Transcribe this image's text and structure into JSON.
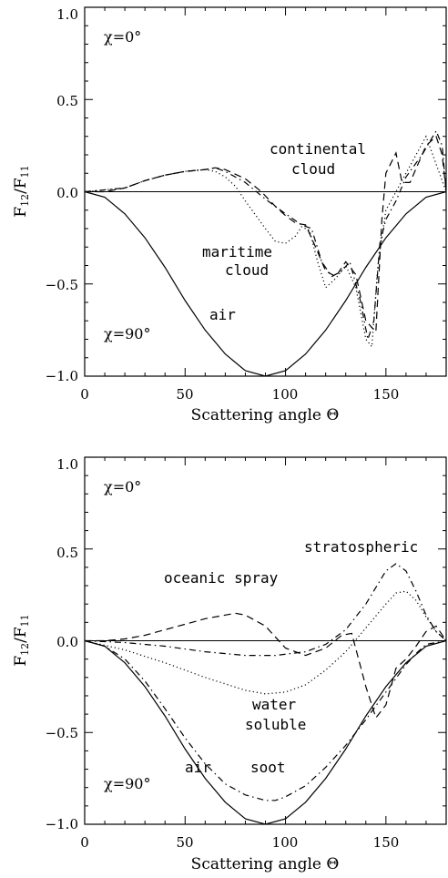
{
  "chart_data": [
    {
      "type": "line",
      "xlabel": "Scattering angle Θ",
      "ylabel": "F12/F11",
      "ylabel_main": "F",
      "ylabel_sub1": "12",
      "ylabel_sep": "/F",
      "ylabel_sub2": "11",
      "xlim": [
        0,
        180
      ],
      "ylim": [
        -1.0,
        1.0
      ],
      "xticks": [
        0,
        50,
        100,
        150
      ],
      "xtick_labels": [
        "0",
        "50",
        "100",
        "150"
      ],
      "yticks": [
        1.0,
        0.5,
        0.0,
        -0.5,
        -1.0
      ],
      "ytick_labels": [
        "1.0",
        "0.5",
        "0.0",
        "−0.5",
        "−1.0"
      ],
      "annotations": {
        "chi0": "χ=0°",
        "chi90": "χ=90°",
        "continental_1": "continental",
        "continental_2": "cloud",
        "maritime_1": "maritime",
        "maritime_2": "cloud",
        "air": "air"
      },
      "series": [
        {
          "name": "air",
          "style": "solid",
          "x": [
            0,
            10,
            20,
            30,
            40,
            50,
            60,
            70,
            80,
            90,
            100,
            110,
            120,
            130,
            140,
            150,
            160,
            170,
            180
          ],
          "y": [
            0,
            -0.03,
            -0.12,
            -0.25,
            -0.41,
            -0.59,
            -0.75,
            -0.88,
            -0.97,
            -1.0,
            -0.97,
            -0.88,
            -0.75,
            -0.59,
            -0.41,
            -0.25,
            -0.12,
            -0.03,
            0
          ]
        },
        {
          "name": "continental cloud",
          "style": "dash",
          "x": [
            0,
            10,
            20,
            30,
            40,
            50,
            60,
            65,
            70,
            80,
            88,
            95,
            100,
            105,
            110,
            115,
            120,
            125,
            130,
            135,
            140,
            145,
            148,
            150,
            155,
            158,
            162,
            170,
            175,
            178,
            180
          ],
          "y": [
            0,
            0.0,
            0.02,
            0.06,
            0.09,
            0.11,
            0.12,
            0.13,
            0.12,
            0.07,
            0.0,
            -0.08,
            -0.13,
            -0.17,
            -0.18,
            -0.3,
            -0.43,
            -0.46,
            -0.38,
            -0.45,
            -0.7,
            -0.76,
            -0.15,
            0.1,
            0.21,
            0.05,
            0.05,
            0.25,
            0.3,
            0.2,
            0
          ]
        },
        {
          "name": "continental cloud (dash-dot)",
          "style": "dashdot",
          "x": [
            0,
            20,
            30,
            40,
            50,
            60,
            65,
            70,
            80,
            90,
            100,
            108,
            113,
            118,
            123,
            128,
            132,
            137,
            141,
            144,
            147,
            150,
            155,
            160,
            168,
            175,
            178,
            180
          ],
          "y": [
            0,
            0.02,
            0.06,
            0.09,
            0.11,
            0.12,
            0.13,
            0.11,
            0.05,
            -0.04,
            -0.12,
            -0.18,
            -0.2,
            -0.38,
            -0.46,
            -0.43,
            -0.38,
            -0.58,
            -0.8,
            -0.7,
            -0.28,
            -0.15,
            -0.05,
            0.08,
            0.2,
            0.33,
            0.25,
            0
          ]
        },
        {
          "name": "maritime cloud",
          "style": "dot",
          "x": [
            0,
            20,
            30,
            40,
            50,
            60,
            65,
            70,
            75,
            80,
            90,
            95,
            100,
            105,
            108,
            112,
            116,
            120,
            125,
            130,
            135,
            140,
            143,
            146,
            150,
            155,
            160,
            170,
            180
          ],
          "y": [
            0,
            0.02,
            0.06,
            0.09,
            0.11,
            0.12,
            0.11,
            0.08,
            0.03,
            -0.05,
            -0.2,
            -0.27,
            -0.28,
            -0.24,
            -0.19,
            -0.21,
            -0.38,
            -0.52,
            -0.47,
            -0.4,
            -0.52,
            -0.8,
            -0.84,
            -0.4,
            -0.1,
            0.0,
            0.1,
            0.3,
            0
          ]
        }
      ]
    },
    {
      "type": "line",
      "xlabel": "Scattering angle Θ",
      "ylabel": "F12/F11",
      "ylabel_main": "F",
      "ylabel_sub1": "12",
      "ylabel_sep": "/F",
      "ylabel_sub2": "11",
      "xlim": [
        0,
        180
      ],
      "ylim": [
        -1.0,
        1.0
      ],
      "xticks": [
        0,
        50,
        100,
        150
      ],
      "xtick_labels": [
        "0",
        "50",
        "100",
        "150"
      ],
      "yticks": [
        1.0,
        0.5,
        0.0,
        -0.5,
        -1.0
      ],
      "ytick_labels": [
        "1.0",
        "0.5",
        "0.0",
        "−0.5",
        "−1.0"
      ],
      "annotations": {
        "chi0": "χ=0°",
        "chi90": "χ=90°",
        "stratospheric": "stratospheric",
        "oceanic": "oceanic spray",
        "water_1": "water",
        "water_2": "soluble",
        "air": "air",
        "soot": "soot"
      },
      "series": [
        {
          "name": "air",
          "style": "solid",
          "x": [
            0,
            10,
            20,
            30,
            40,
            50,
            60,
            70,
            80,
            90,
            100,
            110,
            120,
            130,
            140,
            150,
            160,
            170,
            180
          ],
          "y": [
            0,
            -0.03,
            -0.12,
            -0.25,
            -0.41,
            -0.59,
            -0.75,
            -0.88,
            -0.97,
            -1.0,
            -0.97,
            -0.88,
            -0.75,
            -0.59,
            -0.41,
            -0.25,
            -0.12,
            -0.03,
            0
          ]
        },
        {
          "name": "oceanic spray",
          "style": "dash",
          "x": [
            0,
            10,
            20,
            30,
            40,
            50,
            60,
            70,
            75,
            80,
            90,
            100,
            110,
            120,
            128,
            133,
            140,
            145,
            150,
            155,
            160,
            165,
            170,
            175,
            180
          ],
          "y": [
            0,
            0.0,
            0.01,
            0.03,
            0.06,
            0.09,
            0.12,
            0.14,
            0.15,
            0.14,
            0.08,
            -0.04,
            -0.08,
            -0.04,
            0.03,
            0.04,
            -0.25,
            -0.42,
            -0.35,
            -0.15,
            -0.1,
            -0.03,
            0.05,
            0.08,
            0
          ]
        },
        {
          "name": "stratospheric",
          "style": "dashdot",
          "x": [
            0,
            20,
            40,
            60,
            80,
            95,
            110,
            120,
            130,
            140,
            150,
            155,
            160,
            165,
            170,
            175,
            180
          ],
          "y": [
            0,
            -0.01,
            -0.03,
            -0.06,
            -0.08,
            -0.08,
            -0.06,
            -0.02,
            0.06,
            0.2,
            0.38,
            0.42,
            0.38,
            0.27,
            0.14,
            0.05,
            0
          ]
        },
        {
          "name": "water soluble",
          "style": "dot",
          "x": [
            0,
            20,
            40,
            60,
            80,
            90,
            100,
            110,
            120,
            130,
            140,
            150,
            155,
            160,
            165,
            170,
            175,
            180
          ],
          "y": [
            0,
            -0.05,
            -0.12,
            -0.2,
            -0.27,
            -0.29,
            -0.28,
            -0.24,
            -0.16,
            -0.06,
            0.07,
            0.2,
            0.26,
            0.27,
            0.22,
            0.13,
            0.05,
            0
          ]
        },
        {
          "name": "soot",
          "style": "dashdot",
          "x": [
            0,
            10,
            20,
            30,
            40,
            50,
            60,
            70,
            80,
            90,
            95,
            100,
            110,
            120,
            130,
            140,
            150,
            160,
            165,
            170,
            180
          ],
          "y": [
            0,
            -0.03,
            -0.1,
            -0.22,
            -0.37,
            -0.53,
            -0.67,
            -0.78,
            -0.84,
            -0.87,
            -0.87,
            -0.85,
            -0.79,
            -0.69,
            -0.57,
            -0.43,
            -0.28,
            -0.13,
            -0.07,
            -0.02,
            0
          ]
        }
      ]
    }
  ]
}
